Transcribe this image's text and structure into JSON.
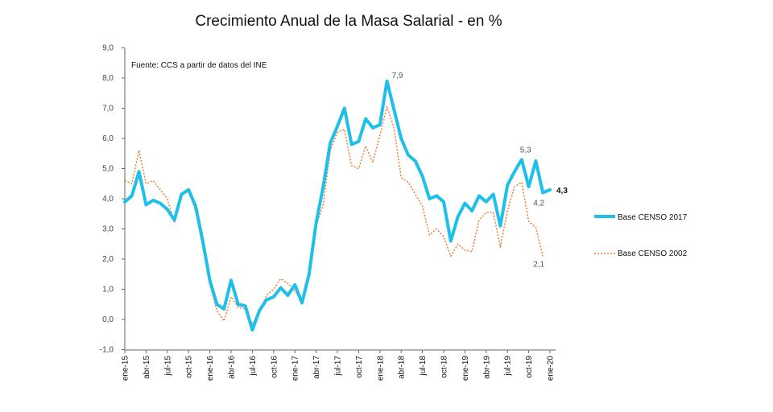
{
  "chart_data": {
    "type": "line",
    "title": "Crecimiento Anual de la Masa Salarial - en %",
    "source_note": "Fuente: CCS a partir de datos del INE",
    "ylim": [
      -1.0,
      9.0
    ],
    "y_ticks": [
      "-1,0",
      "0,0",
      "1,0",
      "2,0",
      "3,0",
      "4,0",
      "5,0",
      "6,0",
      "7,0",
      "8,0",
      "9,0"
    ],
    "y_tick_values": [
      -1,
      0,
      1,
      2,
      3,
      4,
      5,
      6,
      7,
      8,
      9
    ],
    "x_ticks": [
      "ene-15",
      "abr-15",
      "jul-15",
      "oct-15",
      "ene-16",
      "abr-16",
      "jul-16",
      "oct-16",
      "ene-17",
      "abr-17",
      "jul-17",
      "oct-17",
      "ene-18",
      "abr-18",
      "jul-18",
      "oct-18",
      "ene-19",
      "abr-19",
      "jul-19",
      "oct-19",
      "ene-20"
    ],
    "x_tick_months": [
      0,
      3,
      6,
      9,
      12,
      15,
      18,
      21,
      24,
      27,
      30,
      33,
      36,
      39,
      42,
      45,
      48,
      51,
      54,
      57,
      60
    ],
    "grid": false,
    "legend_position": "right",
    "series": [
      {
        "name": "Base CENSO 2017",
        "color": "#1EBFE8",
        "style": "solid",
        "values": [
          3.9,
          4.1,
          4.9,
          3.8,
          3.95,
          3.85,
          3.65,
          3.3,
          4.15,
          4.3,
          3.75,
          2.6,
          1.3,
          0.5,
          0.35,
          1.3,
          0.5,
          0.45,
          -0.35,
          0.3,
          0.65,
          0.75,
          1.05,
          0.8,
          1.15,
          0.55,
          1.5,
          3.2,
          4.4,
          5.85,
          6.4,
          7.0,
          5.8,
          5.9,
          6.65,
          6.35,
          6.45,
          7.9,
          6.95,
          6.0,
          5.45,
          5.25,
          4.75,
          4.0,
          4.1,
          3.9,
          2.6,
          3.4,
          3.85,
          3.6,
          4.1,
          3.9,
          4.15,
          3.1,
          4.45,
          4.9,
          5.3,
          4.4,
          5.25,
          4.2,
          4.3
        ]
      },
      {
        "name": "Base CENSO 2002",
        "color": "#ED7D31",
        "style": "dotted",
        "values": [
          4.6,
          4.5,
          5.6,
          4.5,
          4.6,
          4.3,
          4.0,
          3.2,
          4.1,
          4.35,
          3.55,
          2.4,
          1.15,
          0.3,
          -0.05,
          0.75,
          0.4,
          0.35,
          -0.15,
          0.3,
          0.8,
          1.0,
          1.35,
          1.2,
          0.95,
          0.6,
          1.6,
          3.1,
          3.8,
          5.6,
          6.2,
          6.3,
          5.1,
          5.0,
          5.75,
          5.2,
          6.1,
          7.05,
          6.35,
          4.7,
          4.55,
          4.15,
          3.75,
          2.8,
          3.0,
          2.75,
          2.1,
          2.5,
          2.3,
          2.25,
          3.3,
          3.55,
          3.55,
          2.4,
          3.6,
          4.4,
          4.55,
          3.25,
          3.05,
          2.1
        ]
      }
    ],
    "annotations": [
      {
        "label": "7,9",
        "series": 0,
        "index": 37
      },
      {
        "label": "5,3",
        "series": 0,
        "index": 56
      },
      {
        "label": "4,2",
        "series": 0,
        "index": 59
      },
      {
        "label": "4,3",
        "series": 0,
        "index": 60,
        "bold": true
      },
      {
        "label": "2,1",
        "series": 1,
        "index": 59
      }
    ]
  }
}
